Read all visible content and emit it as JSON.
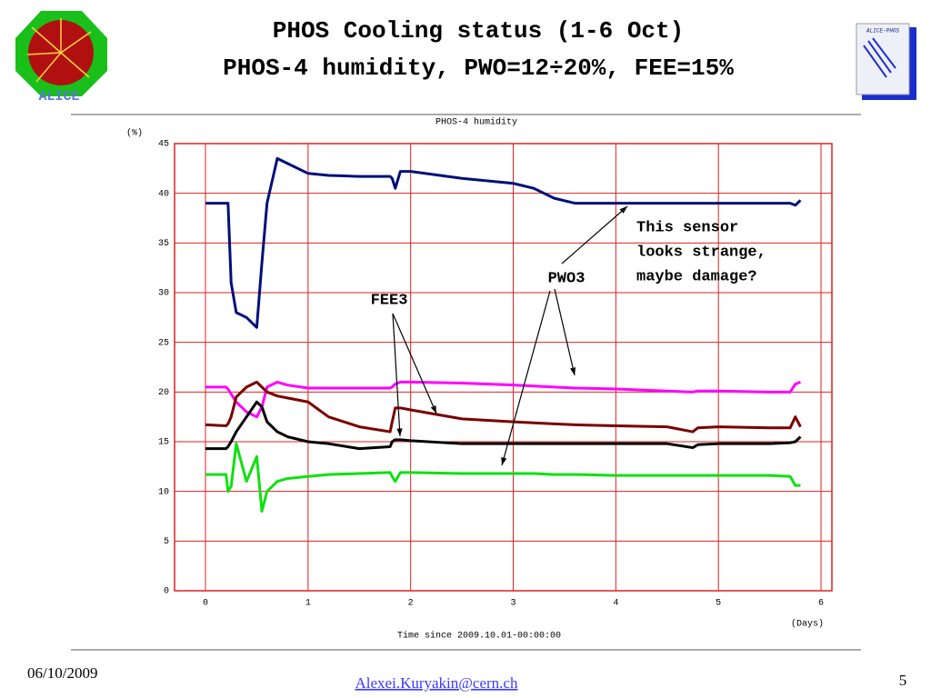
{
  "slide": {
    "title_lines": [
      "PHOS Cooling status (1-6 Oct)",
      "PHOS-4 humidity, PWO=12÷20%, FEE=15%"
    ],
    "date": "06/10/2009",
    "author": "Alexei.Kuryakin@cern.ch",
    "page": "5",
    "logo_text": "ALICE-PHOS"
  },
  "chart_data": {
    "type": "line",
    "title": "PHOS-4 humidity",
    "y_label": "(%)",
    "x_label": "Time since 2009.10.01-00:00:00",
    "x_unit": "(Days)",
    "xlim": [
      0,
      6
    ],
    "ylim": [
      0,
      45
    ],
    "xticks": [
      0,
      1,
      2,
      3,
      4,
      5,
      6
    ],
    "yticks": [
      0,
      5,
      10,
      15,
      20,
      25,
      30,
      35,
      40,
      45
    ],
    "grid": true,
    "grid_color": "#e02020",
    "x": [
      0,
      0.2,
      0.22,
      0.25,
      0.3,
      0.4,
      0.5,
      0.55,
      0.6,
      0.7,
      0.8,
      1.0,
      1.2,
      1.5,
      1.8,
      1.82,
      1.85,
      1.9,
      2.0,
      2.5,
      3.0,
      3.2,
      3.4,
      3.6,
      4.0,
      4.5,
      4.75,
      4.8,
      5.0,
      5.5,
      5.7,
      5.75,
      5.8
    ],
    "series": [
      {
        "color": "#00107a",
        "values": [
          39,
          39,
          39,
          31,
          28,
          27.5,
          26.5,
          33,
          39,
          43.5,
          43,
          42,
          41.8,
          41.7,
          41.7,
          41.5,
          40.5,
          42.2,
          42.2,
          41.5,
          41,
          40.5,
          39.5,
          39,
          39,
          39,
          39,
          39,
          39,
          39,
          39,
          38.8,
          39.3
        ]
      },
      {
        "color": "#ff00ff",
        "values": [
          20.5,
          20.5,
          20.3,
          19.8,
          19,
          18,
          17.5,
          18.5,
          20.5,
          21,
          20.7,
          20.4,
          20.4,
          20.4,
          20.4,
          20.5,
          20.8,
          21,
          21,
          20.9,
          20.7,
          20.6,
          20.5,
          20.4,
          20.3,
          20.1,
          20,
          20.1,
          20.1,
          20,
          20,
          20.8,
          21
        ]
      },
      {
        "color": "#7a0000",
        "values": [
          16.7,
          16.6,
          16.8,
          17.5,
          19.5,
          20.5,
          21,
          20.5,
          20,
          19.6,
          19.4,
          19,
          17.5,
          16.5,
          16,
          17,
          18.4,
          18.4,
          18.2,
          17.3,
          17,
          16.9,
          16.8,
          16.7,
          16.6,
          16.5,
          16,
          16.4,
          16.5,
          16.4,
          16.4,
          17.5,
          16.5
        ]
      },
      {
        "color": "#000000",
        "values": [
          14.3,
          14.3,
          14.5,
          15,
          16,
          17.5,
          19,
          18.5,
          17,
          16,
          15.5,
          15,
          14.8,
          14.3,
          14.5,
          15,
          15.2,
          15.2,
          15.1,
          14.8,
          14.8,
          14.8,
          14.8,
          14.8,
          14.8,
          14.8,
          14.4,
          14.7,
          14.8,
          14.8,
          14.9,
          15,
          15.5
        ]
      },
      {
        "color": "#10e010",
        "values": [
          11.7,
          11.7,
          10,
          10.5,
          14.8,
          11,
          13.5,
          8,
          10,
          11,
          11.3,
          11.5,
          11.7,
          11.8,
          11.9,
          11.5,
          11,
          11.9,
          11.9,
          11.8,
          11.8,
          11.8,
          11.7,
          11.7,
          11.6,
          11.6,
          11.6,
          11.6,
          11.6,
          11.6,
          11.5,
          10.6,
          10.6
        ]
      }
    ],
    "annotations": [
      {
        "lines": [
          "This sensor",
          "looks strange,",
          "maybe damage?"
        ]
      },
      {
        "lines": [
          "PWO3"
        ]
      },
      {
        "lines": [
          "FEE3"
        ]
      }
    ]
  }
}
